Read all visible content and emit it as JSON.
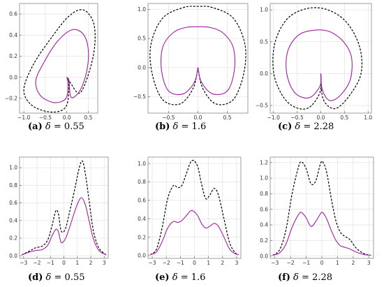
{
  "curve_colors": {
    "solid": "#a020a0",
    "dashed": "#000000"
  },
  "panels": [
    {
      "id": "a",
      "label": "(a)",
      "delta": "0.55",
      "x_ticks": [
        "−1.0",
        "−0.5",
        "0.0",
        "0.5"
      ],
      "y_ticks": [
        "−0.2",
        "0.0",
        "0.2",
        "0.4",
        "0.6"
      ]
    },
    {
      "id": "b",
      "label": "(b)",
      "delta": "1.6",
      "x_ticks": [
        "−0.5",
        "0.0",
        "0.5"
      ],
      "y_ticks": [
        "−0.5",
        "0.0",
        "0.5",
        "1.0"
      ]
    },
    {
      "id": "c",
      "label": "(c)",
      "delta": "2.28",
      "x_ticks": [
        "−1.0",
        "−0.5",
        "0.0",
        "0.5",
        "1.0"
      ],
      "y_ticks": [
        "−0.5",
        "0.0",
        "0.5",
        "1.0"
      ]
    },
    {
      "id": "d",
      "label": "(d)",
      "delta": "0.55",
      "x_ticks": [
        "−3",
        "−2",
        "−1",
        "0",
        "1",
        "2",
        "3"
      ],
      "y_ticks": [
        "0.0",
        "0.2",
        "0.4",
        "0.6",
        "0.8",
        "1.0"
      ]
    },
    {
      "id": "e",
      "label": "(e)",
      "delta": "1.6",
      "x_ticks": [
        "−3",
        "−2",
        "−1",
        "0",
        "1",
        "2",
        "3"
      ],
      "y_ticks": [
        "0.0",
        "0.2",
        "0.4",
        "0.6",
        "0.8",
        "1.0"
      ]
    },
    {
      "id": "f",
      "label": "(f)",
      "delta": "2.28",
      "x_ticks": [
        "−3",
        "−2",
        "−1",
        "0",
        "1",
        "2",
        "3"
      ],
      "y_ticks": [
        "0.0",
        "0.2",
        "0.4",
        "0.6",
        "0.8",
        "1.0",
        "1.2"
      ]
    }
  ],
  "chart_data": [
    {
      "panel": "a",
      "type": "line",
      "title": "",
      "xlabel": "",
      "ylabel": "",
      "xlim": [
        -1.1,
        0.72
      ],
      "ylim": [
        -0.34,
        0.7
      ],
      "grid": true,
      "series": [
        {
          "style": "dashed",
          "points": [
            [
              0,
              0
            ],
            [
              0.05,
              -0.08
            ],
            [
              -0.02,
              -0.28
            ],
            [
              -0.35,
              -0.33
            ],
            [
              -0.8,
              -0.27
            ],
            [
              -1.0,
              -0.12
            ],
            [
              -0.78,
              0.12
            ],
            [
              -0.35,
              0.38
            ],
            [
              0.05,
              0.58
            ],
            [
              0.38,
              0.64
            ],
            [
              0.62,
              0.52
            ],
            [
              0.65,
              0.3
            ],
            [
              0.52,
              0.05
            ],
            [
              0.3,
              -0.15
            ],
            [
              0.08,
              -0.05
            ],
            [
              0,
              0
            ]
          ]
        },
        {
          "style": "solid",
          "points": [
            [
              0,
              0
            ],
            [
              0.03,
              -0.06
            ],
            [
              -0.02,
              -0.2
            ],
            [
              -0.3,
              -0.24
            ],
            [
              -0.62,
              -0.17
            ],
            [
              -0.72,
              -0.03
            ],
            [
              -0.52,
              0.15
            ],
            [
              -0.22,
              0.34
            ],
            [
              0.12,
              0.45
            ],
            [
              0.38,
              0.41
            ],
            [
              0.5,
              0.26
            ],
            [
              0.46,
              0.05
            ],
            [
              0.3,
              -0.13
            ],
            [
              0.1,
              -0.19
            ],
            [
              0.05,
              -0.03
            ],
            [
              0,
              0
            ]
          ]
        }
      ]
    },
    {
      "panel": "b",
      "type": "line",
      "title": "",
      "xlabel": "",
      "ylabel": "",
      "xlim": [
        -0.85,
        0.85
      ],
      "ylim": [
        -0.78,
        1.1
      ],
      "grid": true,
      "series": [
        {
          "style": "dashed",
          "points": [
            [
              0,
              0
            ],
            [
              0.08,
              -0.35
            ],
            [
              0.3,
              -0.62
            ],
            [
              0.6,
              -0.55
            ],
            [
              0.78,
              -0.1
            ],
            [
              0.8,
              0.4
            ],
            [
              0.6,
              0.85
            ],
            [
              0.25,
              1.03
            ],
            [
              0,
              1.05
            ],
            [
              -0.25,
              1.03
            ],
            [
              -0.6,
              0.85
            ],
            [
              -0.8,
              0.4
            ],
            [
              -0.78,
              -0.1
            ],
            [
              -0.6,
              -0.55
            ],
            [
              -0.3,
              -0.62
            ],
            [
              -0.08,
              -0.35
            ],
            [
              0,
              0
            ]
          ]
        },
        {
          "style": "solid",
          "points": [
            [
              0,
              0
            ],
            [
              0.06,
              -0.25
            ],
            [
              0.25,
              -0.45
            ],
            [
              0.5,
              -0.4
            ],
            [
              0.62,
              -0.05
            ],
            [
              0.6,
              0.35
            ],
            [
              0.42,
              0.6
            ],
            [
              0.2,
              0.69
            ],
            [
              0,
              0.7
            ],
            [
              -0.2,
              0.69
            ],
            [
              -0.42,
              0.6
            ],
            [
              -0.6,
              0.35
            ],
            [
              -0.62,
              -0.05
            ],
            [
              -0.5,
              -0.4
            ],
            [
              -0.25,
              -0.45
            ],
            [
              -0.06,
              -0.25
            ],
            [
              0,
              0
            ]
          ]
        }
      ]
    },
    {
      "panel": "c",
      "type": "line",
      "title": "",
      "xlabel": "",
      "ylabel": "",
      "xlim": [
        -1.07,
        1.07
      ],
      "ylim": [
        -0.62,
        1.1
      ],
      "grid": true,
      "series": [
        {
          "style": "dashed",
          "points": [
            [
              0,
              0
            ],
            [
              -0.02,
              -0.3
            ],
            [
              -0.3,
              -0.55
            ],
            [
              -0.7,
              -0.45
            ],
            [
              -0.98,
              -0.05
            ],
            [
              -0.98,
              0.45
            ],
            [
              -0.72,
              0.85
            ],
            [
              -0.3,
              1.02
            ],
            [
              0.15,
              1.0
            ],
            [
              0.55,
              0.8
            ],
            [
              0.82,
              0.42
            ],
            [
              0.85,
              0
            ],
            [
              0.6,
              -0.35
            ],
            [
              0.3,
              -0.55
            ],
            [
              0.05,
              -0.4
            ],
            [
              0,
              0
            ]
          ]
        },
        {
          "style": "solid",
          "points": [
            [
              0,
              0
            ],
            [
              -0.02,
              -0.2
            ],
            [
              -0.25,
              -0.38
            ],
            [
              -0.55,
              -0.3
            ],
            [
              -0.72,
              0
            ],
            [
              -0.7,
              0.35
            ],
            [
              -0.48,
              0.6
            ],
            [
              -0.15,
              0.68
            ],
            [
              0.18,
              0.66
            ],
            [
              0.48,
              0.5
            ],
            [
              0.65,
              0.25
            ],
            [
              0.62,
              -0.1
            ],
            [
              0.4,
              -0.35
            ],
            [
              0.18,
              -0.42
            ],
            [
              0.03,
              -0.25
            ],
            [
              0,
              0
            ]
          ]
        }
      ]
    },
    {
      "panel": "d",
      "type": "line",
      "title": "",
      "xlabel": "",
      "ylabel": "",
      "xlim": [
        -3.3,
        3.3
      ],
      "ylim": [
        -0.03,
        1.12
      ],
      "grid": true,
      "series": [
        {
          "style": "dashed",
          "points": [
            [
              -3.14,
              0.01
            ],
            [
              -2.6,
              0.05
            ],
            [
              -2.1,
              0.09
            ],
            [
              -1.6,
              0.11
            ],
            [
              -1.2,
              0.18
            ],
            [
              -0.9,
              0.33
            ],
            [
              -0.6,
              0.51
            ],
            [
              -0.4,
              0.47
            ],
            [
              -0.2,
              0.28
            ],
            [
              0.1,
              0.3
            ],
            [
              0.4,
              0.48
            ],
            [
              0.8,
              0.75
            ],
            [
              1.1,
              0.97
            ],
            [
              1.3,
              1.07
            ],
            [
              1.45,
              1.05
            ],
            [
              1.65,
              0.88
            ],
            [
              1.9,
              0.6
            ],
            [
              2.2,
              0.28
            ],
            [
              2.6,
              0.09
            ],
            [
              3.14,
              0.01
            ]
          ]
        },
        {
          "style": "solid",
          "points": [
            [
              -3.14,
              0.01
            ],
            [
              -2.6,
              0.04
            ],
            [
              -2.1,
              0.06
            ],
            [
              -1.6,
              0.07
            ],
            [
              -1.2,
              0.12
            ],
            [
              -0.9,
              0.22
            ],
            [
              -0.6,
              0.3
            ],
            [
              -0.4,
              0.27
            ],
            [
              -0.2,
              0.15
            ],
            [
              0.1,
              0.19
            ],
            [
              0.4,
              0.31
            ],
            [
              0.8,
              0.5
            ],
            [
              1.1,
              0.62
            ],
            [
              1.3,
              0.66
            ],
            [
              1.5,
              0.62
            ],
            [
              1.7,
              0.52
            ],
            [
              1.9,
              0.38
            ],
            [
              2.2,
              0.19
            ],
            [
              2.6,
              0.06
            ],
            [
              3.14,
              0.01
            ]
          ]
        }
      ]
    },
    {
      "panel": "e",
      "type": "line",
      "title": "",
      "xlabel": "",
      "ylabel": "",
      "xlim": [
        -3.3,
        3.3
      ],
      "ylim": [
        -0.03,
        1.07
      ],
      "grid": true,
      "series": [
        {
          "style": "dashed",
          "points": [
            [
              -3.14,
              0.01
            ],
            [
              -2.7,
              0.07
            ],
            [
              -2.3,
              0.3
            ],
            [
              -1.9,
              0.62
            ],
            [
              -1.5,
              0.76
            ],
            [
              -1.2,
              0.74
            ],
            [
              -0.9,
              0.76
            ],
            [
              -0.6,
              0.88
            ],
            [
              -0.2,
              1.03
            ],
            [
              0.2,
              0.98
            ],
            [
              0.5,
              0.78
            ],
            [
              0.8,
              0.62
            ],
            [
              1.1,
              0.66
            ],
            [
              1.4,
              0.73
            ],
            [
              1.7,
              0.66
            ],
            [
              2.1,
              0.4
            ],
            [
              2.5,
              0.14
            ],
            [
              2.9,
              0.03
            ],
            [
              3.14,
              0.01
            ]
          ]
        },
        {
          "style": "solid",
          "points": [
            [
              -3.14,
              0.01
            ],
            [
              -2.7,
              0.04
            ],
            [
              -2.3,
              0.15
            ],
            [
              -1.9,
              0.3
            ],
            [
              -1.5,
              0.37
            ],
            [
              -1.2,
              0.36
            ],
            [
              -0.9,
              0.38
            ],
            [
              -0.6,
              0.43
            ],
            [
              -0.2,
              0.49
            ],
            [
              0.2,
              0.44
            ],
            [
              0.5,
              0.35
            ],
            [
              0.8,
              0.3
            ],
            [
              1.1,
              0.32
            ],
            [
              1.4,
              0.35
            ],
            [
              1.7,
              0.32
            ],
            [
              2.1,
              0.2
            ],
            [
              2.5,
              0.07
            ],
            [
              2.9,
              0.02
            ],
            [
              3.14,
              0.01
            ]
          ]
        }
      ]
    },
    {
      "panel": "f",
      "type": "line",
      "title": "",
      "xlabel": "",
      "ylabel": "",
      "xlim": [
        -3.3,
        3.3
      ],
      "ylim": [
        -0.03,
        1.27
      ],
      "grid": true,
      "series": [
        {
          "style": "dashed",
          "points": [
            [
              -3.14,
              0.01
            ],
            [
              -2.7,
              0.08
            ],
            [
              -2.3,
              0.33
            ],
            [
              -1.9,
              0.8
            ],
            [
              -1.5,
              1.14
            ],
            [
              -1.3,
              1.21
            ],
            [
              -1.0,
              1.12
            ],
            [
              -0.7,
              0.93
            ],
            [
              -0.4,
              0.96
            ],
            [
              -0.1,
              1.18
            ],
            [
              0.05,
              1.21
            ],
            [
              0.3,
              1.08
            ],
            [
              0.6,
              0.74
            ],
            [
              0.9,
              0.45
            ],
            [
              1.2,
              0.3
            ],
            [
              1.5,
              0.25
            ],
            [
              1.8,
              0.21
            ],
            [
              2.2,
              0.1
            ],
            [
              2.7,
              0.03
            ],
            [
              3.14,
              0.01
            ]
          ]
        },
        {
          "style": "solid",
          "points": [
            [
              -3.14,
              0.01
            ],
            [
              -2.7,
              0.04
            ],
            [
              -2.3,
              0.15
            ],
            [
              -1.9,
              0.37
            ],
            [
              -1.5,
              0.53
            ],
            [
              -1.3,
              0.56
            ],
            [
              -1.0,
              0.49
            ],
            [
              -0.7,
              0.38
            ],
            [
              -0.4,
              0.44
            ],
            [
              -0.1,
              0.54
            ],
            [
              0.05,
              0.56
            ],
            [
              0.3,
              0.48
            ],
            [
              0.6,
              0.33
            ],
            [
              0.9,
              0.2
            ],
            [
              1.2,
              0.13
            ],
            [
              1.5,
              0.11
            ],
            [
              1.8,
              0.09
            ],
            [
              2.2,
              0.05
            ],
            [
              2.7,
              0.02
            ],
            [
              3.14,
              0.01
            ]
          ]
        }
      ]
    }
  ]
}
